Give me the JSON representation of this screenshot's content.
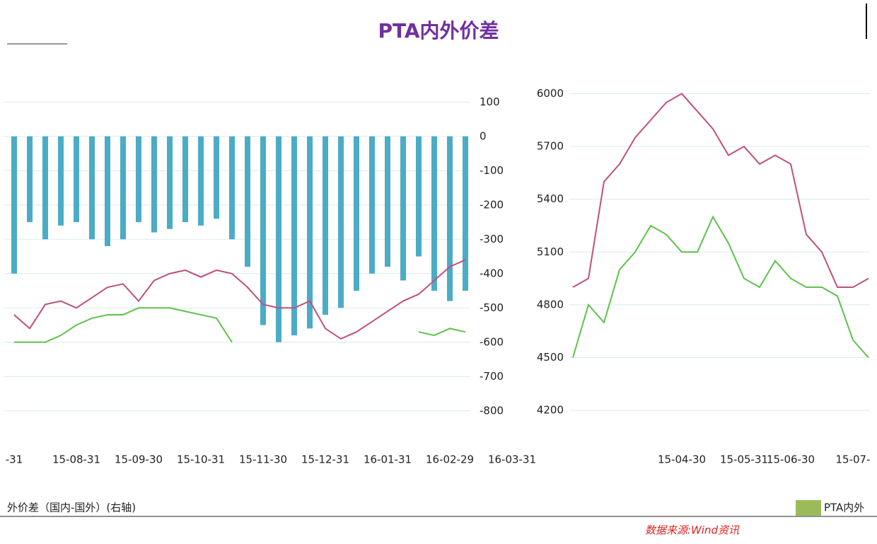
{
  "title": "PTA内外价差",
  "source": "数据来源:Wind资讯",
  "legend": [
    "外价差（国内-国外）(右轴)",
    "PTA内外"
  ],
  "chart_data": [
    {
      "type": "combo",
      "categories": [
        "-31",
        null,
        null,
        null,
        "15-08-31",
        null,
        null,
        null,
        "15-09-30",
        null,
        null,
        null,
        "15-10-31",
        null,
        null,
        null,
        "15-11-30",
        null,
        null,
        null,
        "15-12-31",
        null,
        null,
        null,
        "16-01-31",
        null,
        null,
        null,
        "16-02-29",
        null,
        null,
        null,
        "16-03-31"
      ],
      "ylim": [
        -850,
        150
      ],
      "yticks": [
        100,
        0,
        -100,
        -200,
        -300,
        -400,
        -500,
        -600,
        -700,
        -800
      ],
      "grid": true,
      "series": [
        {
          "name": "外价差（国内-国外）(右轴)",
          "type": "bar",
          "color": "#4bacc6",
          "values": [
            -400,
            -250,
            -300,
            -260,
            -250,
            -300,
            -320,
            -300,
            -250,
            -280,
            -270,
            -250,
            -260,
            -240,
            -300,
            -380,
            -550,
            -600,
            -580,
            -560,
            -520,
            -500,
            -450,
            -400,
            -380,
            -420,
            -350,
            -450,
            -480,
            -450,
            null,
            null,
            null
          ]
        },
        {
          "type": "line",
          "color": "#c0507a",
          "values": [
            -520,
            -560,
            -490,
            -480,
            -500,
            -470,
            -440,
            -430,
            -480,
            -420,
            -400,
            -390,
            -410,
            -390,
            -400,
            -440,
            -490,
            -500,
            -500,
            -480,
            -560,
            -590,
            -570,
            -540,
            -510,
            -480,
            -460,
            -420,
            -380,
            -360,
            null,
            null,
            null
          ]
        },
        {
          "type": "line",
          "color": "#5cc24a",
          "values": [
            -600,
            -600,
            -600,
            -580,
            -550,
            -530,
            -520,
            -520,
            -500,
            -500,
            -500,
            -510,
            -520,
            -530,
            -600,
            null,
            null,
            null,
            null,
            null,
            null,
            null,
            null,
            null,
            null,
            null,
            -570,
            -580,
            -560,
            -570,
            null,
            null,
            null
          ]
        }
      ]
    },
    {
      "type": "combo",
      "categories": [
        null,
        null,
        null,
        null,
        null,
        null,
        null,
        "15-04-30",
        null,
        null,
        null,
        "15-05-31",
        null,
        null,
        "15-06-30",
        null,
        null,
        null,
        "15-07-",
        null
      ],
      "ylim": [
        4100,
        6050
      ],
      "yticks": [
        4200,
        4500,
        4800,
        5100,
        5400,
        5700,
        6000
      ],
      "grid": true,
      "series": [
        {
          "type": "line",
          "color": "#c0507a",
          "values": [
            4900,
            4950,
            5500,
            5600,
            5750,
            5850,
            5950,
            6000,
            5900,
            5800,
            5650,
            5700,
            5600,
            5650,
            5600,
            5200,
            5100,
            4900,
            4900,
            4950
          ]
        },
        {
          "type": "line",
          "color": "#5cc24a",
          "values": [
            4500,
            4800,
            4700,
            5000,
            5100,
            5250,
            5200,
            5100,
            5100,
            5300,
            5150,
            4950,
            4900,
            5050,
            4950,
            4900,
            4900,
            4850,
            4600,
            4500
          ]
        }
      ]
    }
  ]
}
